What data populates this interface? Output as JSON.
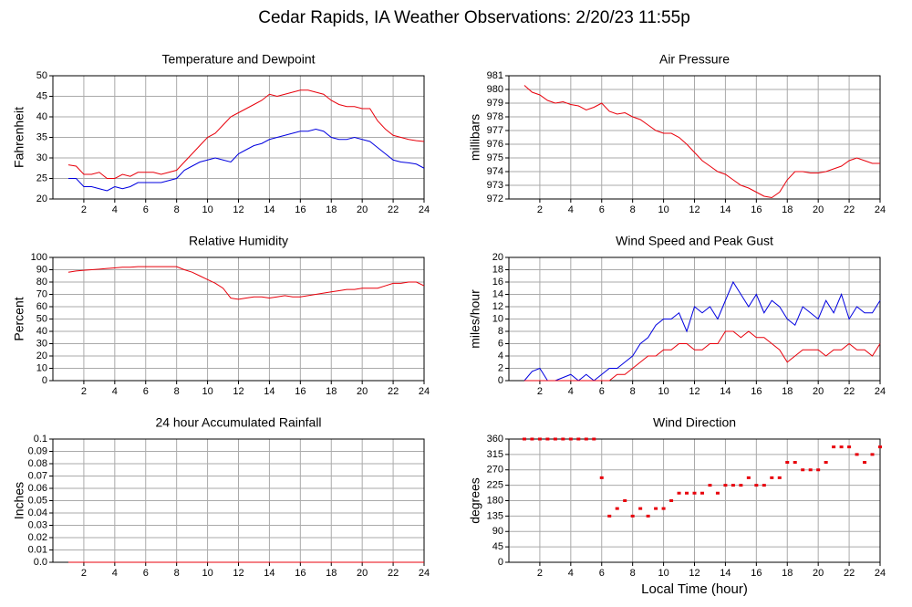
{
  "title": "Cedar Rapids, IA Weather Observations: 2/20/23 11:55p",
  "chart_data": [
    {
      "type": "line",
      "title": "Temperature and Dewpoint",
      "ylabel": "Fahrenheit",
      "x": [
        1,
        1.5,
        2,
        2.5,
        3,
        3.5,
        4,
        4.5,
        5,
        5.5,
        6,
        6.5,
        7,
        7.5,
        8,
        8.5,
        9,
        9.5,
        10,
        10.5,
        11,
        11.5,
        12,
        12.5,
        13,
        13.5,
        14,
        14.5,
        15,
        15.5,
        16,
        16.5,
        17,
        17.5,
        18,
        18.5,
        19,
        19.5,
        20,
        20.5,
        21,
        21.5,
        22,
        22.5,
        23,
        23.5,
        24
      ],
      "series": [
        {
          "color": "#e8000b",
          "values": [
            28.3,
            28,
            26,
            26,
            26.5,
            25,
            25,
            26,
            25.5,
            26.5,
            26.5,
            26.5,
            26,
            26.5,
            27,
            29,
            31,
            33,
            35,
            36,
            38,
            40,
            41,
            42,
            43,
            44,
            45.5,
            45,
            45.5,
            46,
            46.5,
            46.5,
            46,
            45.5,
            44,
            43,
            42.5,
            42.5,
            42,
            42,
            39,
            37,
            35.5,
            35,
            34.5,
            34.2,
            34
          ]
        },
        {
          "color": "#0000e0",
          "values": [
            25,
            25,
            23,
            23,
            22.5,
            22,
            23,
            22.5,
            23,
            24,
            24,
            24,
            24,
            24.5,
            25,
            27,
            28,
            29,
            29.5,
            30,
            29.5,
            29,
            31,
            32,
            33,
            33.5,
            34.5,
            35,
            35.5,
            36,
            36.5,
            36.5,
            37,
            36.5,
            35,
            34.5,
            34.5,
            35,
            34.5,
            34,
            32.5,
            31,
            29.5,
            29,
            28.8,
            28.5,
            27.5
          ]
        }
      ],
      "xlim": [
        0,
        24
      ],
      "xticks": [
        2,
        4,
        6,
        8,
        10,
        12,
        14,
        16,
        18,
        20,
        22,
        24
      ],
      "ylim": [
        20,
        50
      ],
      "yticks": [
        20,
        25,
        30,
        35,
        40,
        45,
        50
      ],
      "grid": true
    },
    {
      "type": "line",
      "title": "Air Pressure",
      "ylabel": "millibars",
      "x": [
        1,
        1.5,
        2,
        2.5,
        3,
        3.5,
        4,
        4.5,
        5,
        5.5,
        6,
        6.5,
        7,
        7.5,
        8,
        8.5,
        9,
        9.5,
        10,
        10.5,
        11,
        11.5,
        12,
        12.5,
        13,
        13.5,
        14,
        14.5,
        15,
        15.5,
        16,
        16.5,
        17,
        17.5,
        18,
        18.5,
        19,
        19.5,
        20,
        20.5,
        21,
        21.5,
        22,
        22.5,
        23,
        23.5,
        24
      ],
      "series": [
        {
          "color": "#e8000b",
          "values": [
            980.3,
            979.8,
            979.6,
            979.2,
            979.0,
            979.1,
            978.9,
            978.8,
            978.5,
            978.7,
            979.0,
            978.4,
            978.2,
            978.3,
            978.0,
            977.8,
            977.4,
            977.0,
            976.8,
            976.8,
            976.5,
            976.0,
            975.4,
            974.8,
            974.4,
            974.0,
            973.8,
            973.4,
            973.0,
            972.8,
            972.5,
            972.2,
            972.1,
            972.5,
            973.4,
            974.0,
            974.0,
            973.9,
            973.9,
            974.0,
            974.2,
            974.4,
            974.8,
            975.0,
            974.8,
            974.6,
            974.6
          ]
        }
      ],
      "xlim": [
        0,
        24
      ],
      "xticks": [
        2,
        4,
        6,
        8,
        10,
        12,
        14,
        16,
        18,
        20,
        22,
        24
      ],
      "ylim": [
        972,
        981
      ],
      "yticks": [
        972,
        973,
        974,
        975,
        976,
        977,
        978,
        979,
        980,
        981
      ],
      "grid": true
    },
    {
      "type": "line",
      "title": "Relative Humidity",
      "ylabel": "Percent",
      "x": [
        1,
        1.5,
        2,
        2.5,
        3,
        3.5,
        4,
        4.5,
        5,
        5.5,
        6,
        6.5,
        7,
        7.5,
        8,
        8.5,
        9,
        9.5,
        10,
        10.5,
        11,
        11.5,
        12,
        12.5,
        13,
        13.5,
        14,
        14.5,
        15,
        15.5,
        16,
        16.5,
        17,
        17.5,
        18,
        18.5,
        19,
        19.5,
        20,
        20.5,
        21,
        21.5,
        22,
        22.5,
        23,
        23.5,
        24
      ],
      "series": [
        {
          "color": "#e8000b",
          "values": [
            88,
            89,
            89.5,
            90,
            90.5,
            91,
            91.5,
            92,
            92,
            92.5,
            92.5,
            92.5,
            92.5,
            92.5,
            92.5,
            90,
            88,
            85,
            82,
            79,
            75,
            67,
            66,
            67,
            68,
            68,
            67,
            68,
            69,
            68,
            68,
            69,
            70,
            71,
            72,
            73,
            74,
            74,
            75,
            75,
            75,
            77,
            79,
            79,
            80,
            80,
            77
          ]
        }
      ],
      "xlim": [
        0,
        24
      ],
      "xticks": [
        2,
        4,
        6,
        8,
        10,
        12,
        14,
        16,
        18,
        20,
        22,
        24
      ],
      "ylim": [
        0,
        100
      ],
      "yticks": [
        0,
        10,
        20,
        30,
        40,
        50,
        60,
        70,
        80,
        90,
        100
      ],
      "grid": true
    },
    {
      "type": "line",
      "title": "Wind Speed and Peak Gust",
      "ylabel": "miles/hour",
      "x": [
        1,
        1.5,
        2,
        2.5,
        3,
        3.5,
        4,
        4.5,
        5,
        5.5,
        6,
        6.5,
        7,
        7.5,
        8,
        8.5,
        9,
        9.5,
        10,
        10.5,
        11,
        11.5,
        12,
        12.5,
        13,
        13.5,
        14,
        14.5,
        15,
        15.5,
        16,
        16.5,
        17,
        17.5,
        18,
        18.5,
        19,
        19.5,
        20,
        20.5,
        21,
        21.5,
        22,
        22.5,
        23,
        23.5,
        24
      ],
      "series": [
        {
          "color": "#0000e0",
          "values": [
            0,
            1.5,
            2,
            0,
            0,
            0.5,
            1,
            0,
            1,
            0,
            1,
            2,
            2,
            3,
            4,
            6,
            7,
            9,
            10,
            10,
            11,
            8,
            12,
            11,
            12,
            10,
            13,
            16,
            14,
            12,
            14,
            11,
            13,
            12,
            10,
            9,
            12,
            11,
            10,
            13,
            11,
            14,
            10,
            12,
            11,
            11,
            13
          ]
        },
        {
          "color": "#e8000b",
          "values": [
            0,
            0,
            0,
            0,
            0,
            0,
            0,
            0,
            0,
            0,
            0,
            0,
            1,
            1,
            2,
            3,
            4,
            4,
            5,
            5,
            6,
            6,
            5,
            5,
            6,
            6,
            8,
            8,
            7,
            8,
            7,
            7,
            6,
            5,
            3,
            4,
            5,
            5,
            5,
            4,
            5,
            5,
            6,
            5,
            5,
            4,
            6
          ]
        }
      ],
      "xlim": [
        0,
        24
      ],
      "xticks": [
        2,
        4,
        6,
        8,
        10,
        12,
        14,
        16,
        18,
        20,
        22,
        24
      ],
      "ylim": [
        0,
        20
      ],
      "yticks": [
        0,
        2,
        4,
        6,
        8,
        10,
        12,
        14,
        16,
        18,
        20
      ],
      "grid": true
    },
    {
      "type": "line",
      "title": "24 hour Accumulated Rainfall",
      "ylabel": "Inches",
      "x": [
        1,
        24
      ],
      "series": [
        {
          "color": "#e8000b",
          "values": [
            0,
            0
          ]
        }
      ],
      "xlim": [
        0,
        24
      ],
      "xticks": [
        2,
        4,
        6,
        8,
        10,
        12,
        14,
        16,
        18,
        20,
        22,
        24
      ],
      "ylim": [
        0,
        0.1
      ],
      "yticks": [
        {
          "value": 0,
          "label": "0.0"
        },
        0.01,
        0.02,
        0.03,
        0.04,
        0.05,
        0.06,
        0.07,
        0.08,
        0.09,
        0.1
      ],
      "grid": true
    },
    {
      "type": "scatter",
      "title": "Wind Direction",
      "ylabel": "degrees",
      "xlabel": "Local Time (hour)",
      "x": [
        1,
        1.5,
        2,
        2.5,
        3,
        3.5,
        4,
        4.5,
        5,
        5.5,
        6,
        6.5,
        7,
        7.5,
        8,
        8.5,
        9,
        9.5,
        10,
        10.5,
        11,
        11.5,
        12,
        12.5,
        13,
        13.5,
        14,
        14.5,
        15,
        15.5,
        16,
        16.5,
        17,
        17.5,
        18,
        18.5,
        19,
        19.5,
        20,
        20.5,
        21,
        21.5,
        22,
        22.5,
        23,
        23.5,
        24
      ],
      "series": [
        {
          "color": "#e8000b",
          "values": [
            360,
            360,
            360,
            360,
            360,
            360,
            360,
            360,
            360,
            360,
            247,
            135,
            157,
            180,
            135,
            157,
            135,
            157,
            157,
            180,
            202,
            202,
            202,
            202,
            225,
            202,
            225,
            225,
            225,
            247,
            225,
            225,
            247,
            247,
            292,
            292,
            270,
            270,
            270,
            292,
            337,
            337,
            337,
            315,
            292,
            315,
            337
          ]
        }
      ],
      "xlim": [
        0,
        24
      ],
      "xticks": [
        2,
        4,
        6,
        8,
        10,
        12,
        14,
        16,
        18,
        20,
        22,
        24
      ],
      "ylim": [
        0,
        360
      ],
      "yticks": [
        0,
        45,
        90,
        135,
        180,
        225,
        270,
        315,
        360
      ],
      "grid": true
    }
  ]
}
